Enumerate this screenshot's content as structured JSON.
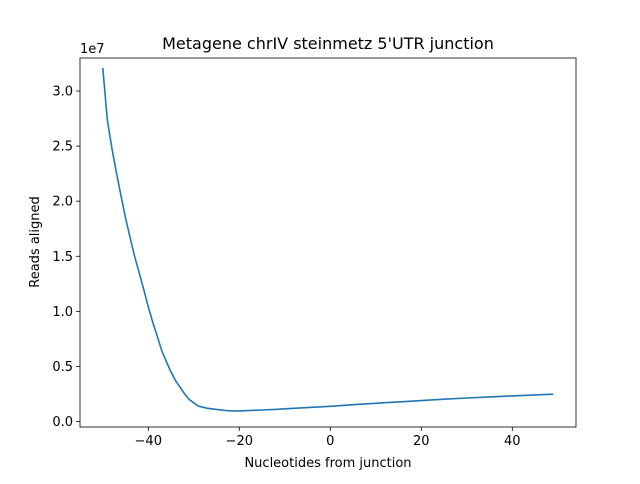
{
  "chart_data": {
    "type": "line",
    "title": "Metagene chrIV steinmetz 5'UTR junction",
    "xlabel": "Nucleotides from junction",
    "ylabel": "Reads aligned",
    "y_offset_text": "1e7",
    "xlim": [
      -55,
      54
    ],
    "ylim": [
      -0.05,
      3.3
    ],
    "x_ticks": [
      -40,
      -20,
      0,
      20,
      40
    ],
    "x_tick_labels": [
      "−40",
      "−20",
      "0",
      "20",
      "40"
    ],
    "y_ticks": [
      0.0,
      0.5,
      1.0,
      1.5,
      2.0,
      2.5,
      3.0
    ],
    "y_tick_labels": [
      "0.0",
      "0.5",
      "1.0",
      "1.5",
      "2.0",
      "2.5",
      "3.0"
    ],
    "grid": false,
    "legend": "none",
    "series": [
      {
        "color": "#1f77b4",
        "x": [
          -50,
          -49,
          -48,
          -47,
          -46,
          -45,
          -44,
          -43,
          -42,
          -41,
          -40,
          -39,
          -38,
          -37,
          -36,
          -35,
          -34,
          -33,
          -32,
          -31,
          -30,
          -29,
          -28,
          -27,
          -26,
          -25,
          -24,
          -23,
          -22,
          -21,
          -20,
          -18,
          -15,
          -12,
          -10,
          -5,
          0,
          5,
          10,
          15,
          20,
          25,
          30,
          35,
          40,
          45,
          49
        ],
        "y": [
          3.21,
          2.74,
          2.48,
          2.26,
          2.05,
          1.85,
          1.67,
          1.5,
          1.35,
          1.2,
          1.04,
          0.9,
          0.77,
          0.64,
          0.54,
          0.45,
          0.37,
          0.31,
          0.25,
          0.2,
          0.17,
          0.14,
          0.13,
          0.12,
          0.115,
          0.11,
          0.105,
          0.1,
          0.097,
          0.096,
          0.096,
          0.099,
          0.104,
          0.11,
          0.115,
          0.126,
          0.138,
          0.152,
          0.165,
          0.178,
          0.19,
          0.202,
          0.213,
          0.223,
          0.232,
          0.241,
          0.248
        ]
      }
    ]
  }
}
